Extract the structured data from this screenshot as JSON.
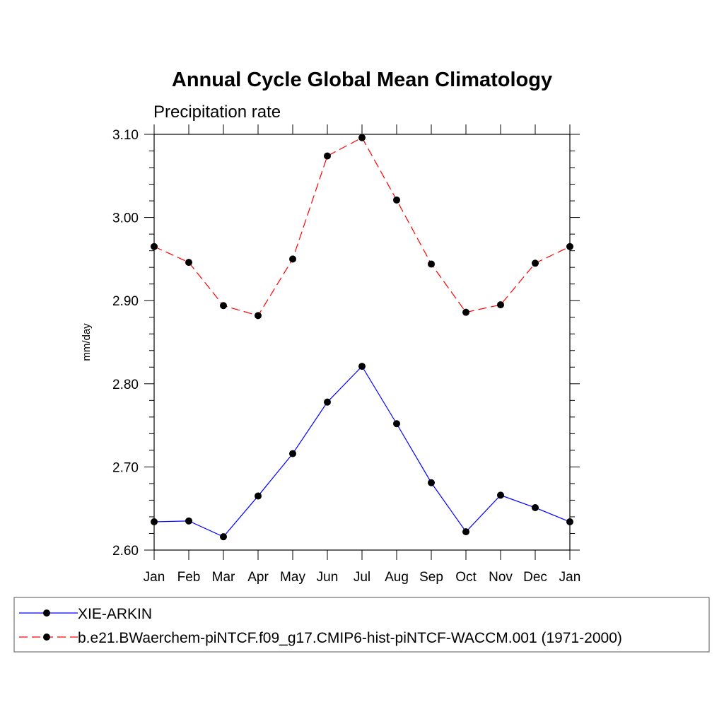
{
  "chart_data": {
    "type": "line",
    "title": "Annual Cycle Global Mean Climatology",
    "subtitle": "Precipitation rate",
    "xlabel": "",
    "ylabel": "mm/day",
    "ylim": [
      2.6,
      3.1
    ],
    "ytick_labels": [
      "2.60",
      "2.70",
      "2.80",
      "2.90",
      "3.00",
      "3.10"
    ],
    "categories": [
      "Jan",
      "Feb",
      "Mar",
      "Apr",
      "May",
      "Jun",
      "Jul",
      "Aug",
      "Sep",
      "Oct",
      "Nov",
      "Dec",
      "Jan"
    ],
    "grid": false,
    "legend_position": "bottom",
    "series": [
      {
        "name": "XIE-ARKIN",
        "color": "#0000ff",
        "line_style": "solid",
        "marker": "filled-circle",
        "values": [
          2.634,
          2.635,
          2.616,
          2.665,
          2.716,
          2.778,
          2.821,
          2.752,
          2.681,
          2.622,
          2.666,
          2.651,
          2.634
        ]
      },
      {
        "name": "b.e21.BWaerchem-piNTCF.f09_g17.CMIP6-hist-piNTCF-WACCM.001 (1971-2000)",
        "color": "#ff0000",
        "line_style": "dashed",
        "marker": "filled-circle",
        "values": [
          2.965,
          2.946,
          2.894,
          2.882,
          2.95,
          3.074,
          3.096,
          3.021,
          2.944,
          2.886,
          2.895,
          2.945,
          2.965
        ]
      }
    ]
  }
}
